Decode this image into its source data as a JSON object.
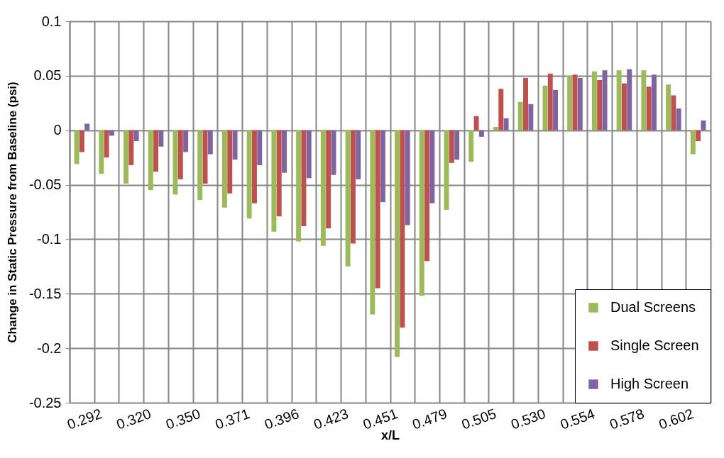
{
  "chart_data": {
    "type": "bar",
    "xlabel": "x/L",
    "ylabel": "Change in Static Pressure from Baseline (psi)",
    "categories": [
      "0.292",
      null,
      "0.320",
      null,
      "0.350",
      null,
      "0.371",
      null,
      "0.396",
      null,
      "0.423",
      null,
      "0.451",
      null,
      "0.479",
      null,
      "0.505",
      null,
      "0.530",
      null,
      "0.554",
      null,
      "0.578",
      null,
      "0.602",
      null
    ],
    "series": [
      {
        "name": "Dual Screens",
        "color": "#9bbb59",
        "values": [
          -0.031,
          -0.04,
          -0.049,
          -0.055,
          -0.059,
          -0.064,
          -0.071,
          -0.081,
          -0.093,
          -0.102,
          -0.106,
          -0.125,
          -0.169,
          -0.208,
          -0.152,
          -0.073,
          -0.029,
          0.003,
          0.026,
          0.041,
          0.05,
          0.054,
          0.055,
          0.055,
          0.042,
          -0.022
        ]
      },
      {
        "name": "Single Screen",
        "color": "#c0504d",
        "values": [
          -0.02,
          -0.025,
          -0.032,
          -0.038,
          -0.045,
          -0.049,
          -0.058,
          -0.067,
          -0.079,
          -0.088,
          -0.09,
          -0.104,
          -0.145,
          -0.181,
          -0.12,
          -0.03,
          0.013,
          0.038,
          0.048,
          0.052,
          0.051,
          0.046,
          0.043,
          0.04,
          0.032,
          -0.01
        ]
      },
      {
        "name": "High Screen",
        "color": "#8064a2",
        "values": [
          0.006,
          -0.005,
          -0.01,
          -0.015,
          -0.02,
          -0.022,
          -0.027,
          -0.032,
          -0.039,
          -0.044,
          -0.041,
          -0.045,
          -0.066,
          -0.087,
          -0.067,
          -0.027,
          -0.006,
          0.011,
          0.024,
          0.037,
          0.048,
          0.055,
          0.056,
          0.051,
          0.02,
          0.009
        ]
      }
    ],
    "ylim": [
      -0.25,
      0.1
    ],
    "yticks": [
      -0.25,
      -0.2,
      -0.15,
      -0.1,
      -0.05,
      0,
      0.05,
      0.1
    ],
    "grid": true,
    "legend": "bottom right"
  }
}
